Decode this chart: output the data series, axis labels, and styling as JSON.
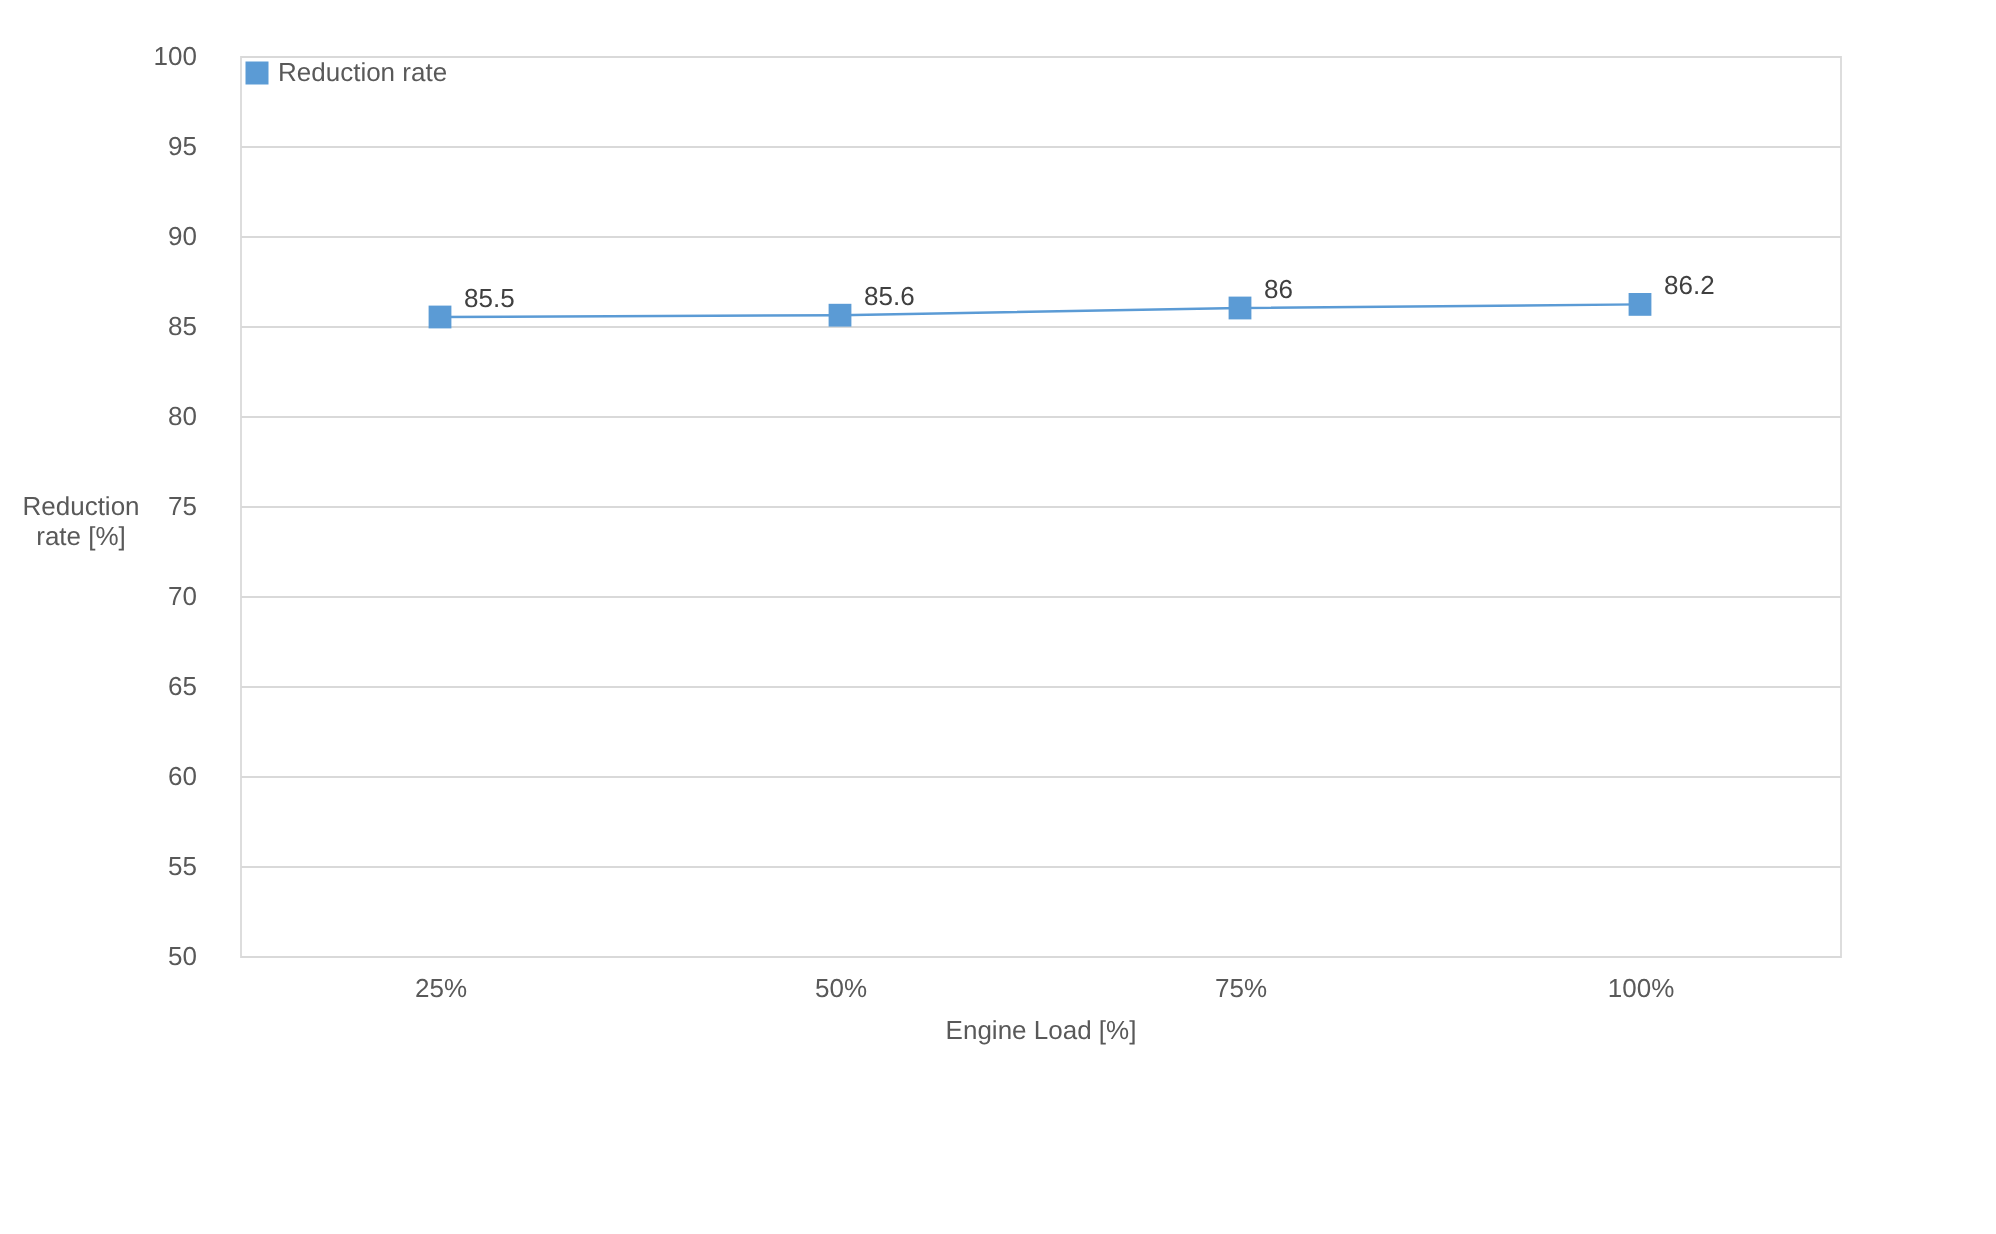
{
  "chart_data": {
    "type": "line",
    "xlabel": "Engine Load [%]",
    "ylabel": "Reduction rate [%]",
    "categories": [
      "25%",
      "50%",
      "75%",
      "100%"
    ],
    "series": [
      {
        "name": "Reduction rate",
        "color": "#5b9bd5",
        "values": [
          85.5,
          85.6,
          86,
          86.2
        ]
      }
    ],
    "ylim": [
      50,
      100
    ],
    "yticks": [
      50,
      55,
      60,
      65,
      70,
      75,
      80,
      85,
      90,
      95,
      100
    ],
    "grid": "y",
    "legend": "top left",
    "marker": "square",
    "line_style": "solid",
    "data_labels": true
  }
}
